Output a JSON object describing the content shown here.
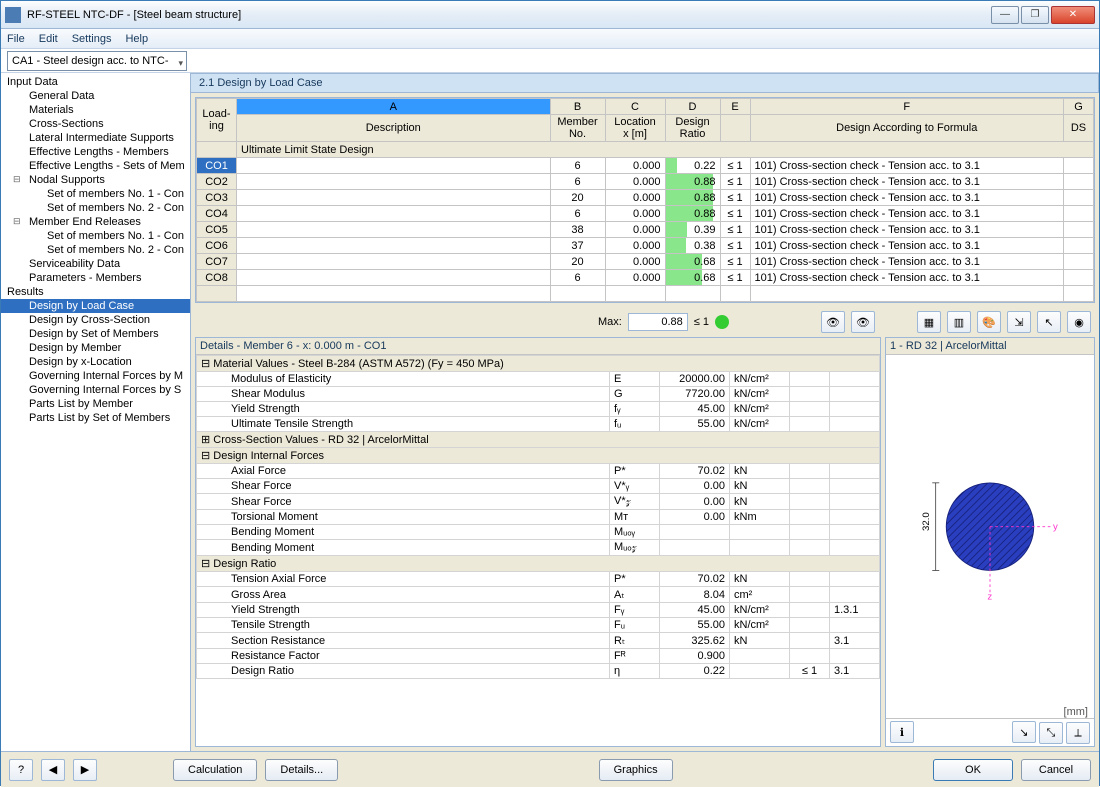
{
  "window": {
    "title": "RF-STEEL NTC-DF - [Steel beam structure]"
  },
  "menu": [
    "File",
    "Edit",
    "Settings",
    "Help"
  ],
  "combo": "CA1 - Steel design acc. to NTC-",
  "tree": {
    "input": "Input Data",
    "input_items": [
      "General Data",
      "Materials",
      "Cross-Sections",
      "Lateral Intermediate Supports",
      "Effective Lengths - Members",
      "Effective Lengths - Sets of Mem"
    ],
    "nodal": "Nodal Supports",
    "nodal_items": [
      "Set of members No. 1 - Con",
      "Set of members No. 2 - Con"
    ],
    "mer": "Member End Releases",
    "mer_items": [
      "Set of members No. 1 - Con",
      "Set of members No. 2 - Con"
    ],
    "serv": "Serviceability Data",
    "params": "Parameters - Members",
    "results": "Results",
    "result_items": [
      "Design by Load Case",
      "Design by Cross-Section",
      "Design by Set of Members",
      "Design by Member",
      "Design by x-Location",
      "Governing Internal Forces by M",
      "Governing Internal Forces by S",
      "Parts List by Member",
      "Parts List by Set of Members"
    ]
  },
  "section_title": "2.1 Design by Load Case",
  "grid": {
    "col_letters": [
      "A",
      "B",
      "C",
      "D",
      "E",
      "F",
      "G"
    ],
    "headers_top": {
      "loading": "Load-\ning",
      "desc": "Description",
      "member": "Member\nNo.",
      "location": "Location\nx [m]",
      "design": "Design\nRatio",
      "formula": "Design According to Formula",
      "ds": "DS"
    },
    "group": "Ultimate Limit State Design",
    "rows": [
      {
        "co": "CO1",
        "desc": "",
        "m": 6,
        "x": "0.000",
        "r": 0.22,
        "le": "≤ 1",
        "f": "101) Cross-section check - Tension acc. to 3.1"
      },
      {
        "co": "CO2",
        "desc": "",
        "m": 6,
        "x": "0.000",
        "r": 0.88,
        "le": "≤ 1",
        "f": "101) Cross-section check - Tension acc. to 3.1"
      },
      {
        "co": "CO3",
        "desc": "",
        "m": 20,
        "x": "0.000",
        "r": 0.88,
        "le": "≤ 1",
        "f": "101) Cross-section check - Tension acc. to 3.1"
      },
      {
        "co": "CO4",
        "desc": "",
        "m": 6,
        "x": "0.000",
        "r": 0.88,
        "le": "≤ 1",
        "f": "101) Cross-section check - Tension acc. to 3.1"
      },
      {
        "co": "CO5",
        "desc": "",
        "m": 38,
        "x": "0.000",
        "r": 0.39,
        "le": "≤ 1",
        "f": "101) Cross-section check - Tension acc. to 3.1"
      },
      {
        "co": "CO6",
        "desc": "",
        "m": 37,
        "x": "0.000",
        "r": 0.38,
        "le": "≤ 1",
        "f": "101) Cross-section check - Tension acc. to 3.1"
      },
      {
        "co": "CO7",
        "desc": "",
        "m": 20,
        "x": "0.000",
        "r": 0.68,
        "le": "≤ 1",
        "f": "101) Cross-section check - Tension acc. to 3.1"
      },
      {
        "co": "CO8",
        "desc": "",
        "m": 6,
        "x": "0.000",
        "r": 0.68,
        "le": "≤ 1",
        "f": "101) Cross-section check - Tension acc. to 3.1"
      }
    ],
    "max_label": "Max:",
    "max_val": "0.88",
    "max_le": "≤ 1"
  },
  "details": {
    "header": "Details - Member 6 - x: 0.000 m - CO1",
    "mat_grp": "Material Values - Steel B-284 (ASTM A572) (Fy = 450 MPa)",
    "mat": [
      {
        "l": "Modulus of Elasticity",
        "s": "E",
        "v": "20000.00",
        "u": "kN/cm²"
      },
      {
        "l": "Shear Modulus",
        "s": "G",
        "v": "7720.00",
        "u": "kN/cm²"
      },
      {
        "l": "Yield Strength",
        "s": "fᵧ",
        "v": "45.00",
        "u": "kN/cm²"
      },
      {
        "l": "Ultimate Tensile Strength",
        "s": "fᵤ",
        "v": "55.00",
        "u": "kN/cm²"
      }
    ],
    "cs_grp": "Cross-Section Values  -  RD 32 | ArcelorMittal",
    "dif_grp": "Design Internal Forces",
    "dif": [
      {
        "l": "Axial Force",
        "s": "P*",
        "v": "70.02",
        "u": "kN"
      },
      {
        "l": "Shear Force",
        "s": "V*ᵧ",
        "v": "0.00",
        "u": "kN"
      },
      {
        "l": "Shear Force",
        "s": "V*𝓏",
        "v": "0.00",
        "u": "kN"
      },
      {
        "l": "Torsional Moment",
        "s": "Mᴛ",
        "v": "0.00",
        "u": "kNm"
      },
      {
        "l": "Bending Moment",
        "s": "Mᵤₒᵧ",
        "v": "",
        "u": ""
      },
      {
        "l": "Bending Moment",
        "s": "Mᵤₒ𝓏",
        "v": "",
        "u": ""
      }
    ],
    "dr_grp": "Design Ratio",
    "dr": [
      {
        "l": "Tension Axial Force",
        "s": "P*",
        "v": "70.02",
        "u": "kN",
        "le": "",
        "r": ""
      },
      {
        "l": "Gross Area",
        "s": "Aₜ",
        "v": "8.04",
        "u": "cm²",
        "le": "",
        "r": ""
      },
      {
        "l": "Yield Strength",
        "s": "Fᵧ",
        "v": "45.00",
        "u": "kN/cm²",
        "le": "",
        "r": "1.3.1"
      },
      {
        "l": "Tensile Strength",
        "s": "Fᵤ",
        "v": "55.00",
        "u": "kN/cm²",
        "le": "",
        "r": ""
      },
      {
        "l": "Section Resistance",
        "s": "Rₜ",
        "v": "325.62",
        "u": "kN",
        "le": "",
        "r": "3.1"
      },
      {
        "l": "Resistance Factor",
        "s": "Fᴿ",
        "v": "0.900",
        "u": "",
        "le": "",
        "r": ""
      },
      {
        "l": "Design Ratio",
        "s": "η",
        "v": "0.22",
        "u": "",
        "le": "≤ 1",
        "r": "3.1"
      }
    ]
  },
  "section_view": {
    "header": "1 - RD 32 | ArcelorMittal",
    "dim": "32.0",
    "unit": "[mm]"
  },
  "buttons": {
    "calc": "Calculation",
    "details": "Details...",
    "graphics": "Graphics",
    "ok": "OK",
    "cancel": "Cancel"
  },
  "colors": {
    "title_bg": "#cfe2f3",
    "sel": "#2f6fc1",
    "bar": "#7de37d",
    "circle_fill": "#2a3fbf",
    "circle_stroke": "#16207a",
    "axis": "#ff33cc"
  }
}
